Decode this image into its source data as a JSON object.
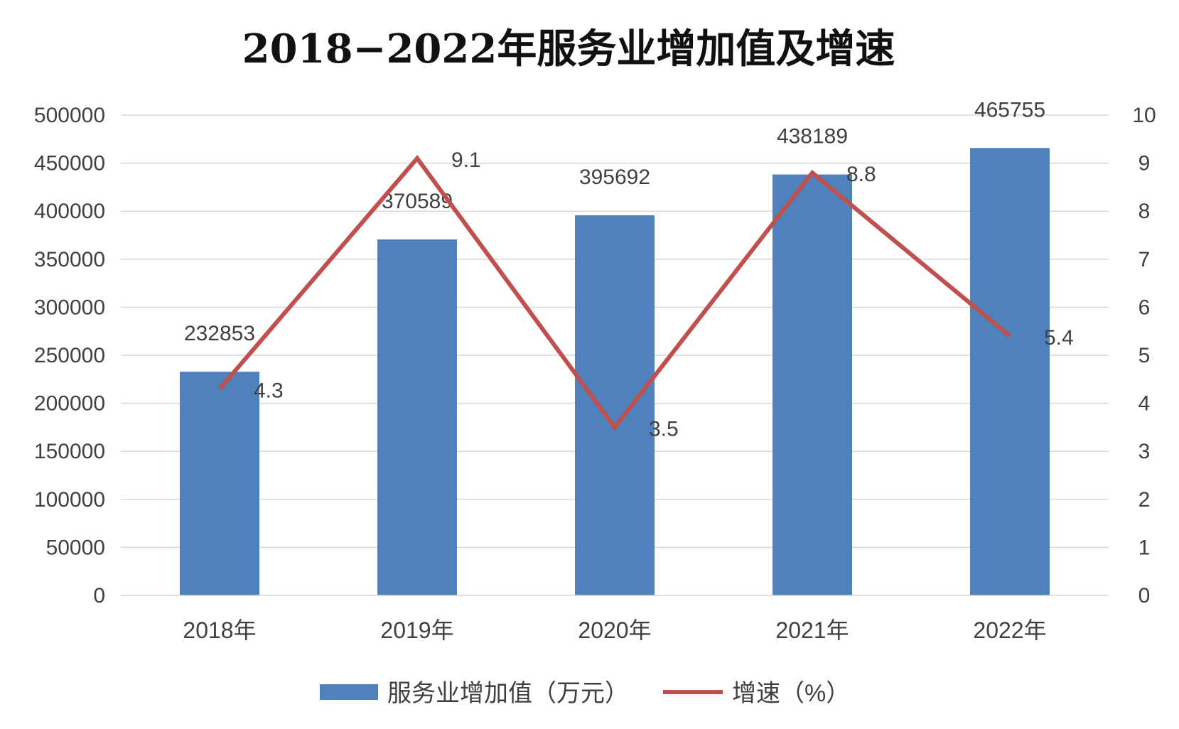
{
  "chart_data": {
    "type": "bar",
    "title": "2018−2022年服务业增加值及增速",
    "categories": [
      "2018年",
      "2019年",
      "2020年",
      "2021年",
      "2022年"
    ],
    "series": [
      {
        "name": "服务业增加值（万元）",
        "type": "bar",
        "axis": "left",
        "color": "#4f81bd",
        "values": [
          232853,
          370589,
          395692,
          438189,
          465755
        ],
        "labels": [
          "232853",
          "370589",
          "395692",
          "438189",
          "465755"
        ]
      },
      {
        "name": "增速（%）",
        "type": "line",
        "axis": "right",
        "color": "#c0504d",
        "values": [
          4.3,
          9.1,
          3.5,
          8.8,
          5.4
        ],
        "labels": [
          "4.3",
          "9.1",
          "3.5",
          "8.8",
          "5.4"
        ]
      }
    ],
    "y_left": {
      "min": 0,
      "max": 500000,
      "ticks": [
        "0",
        "50000",
        "100000",
        "150000",
        "200000",
        "250000",
        "300000",
        "350000",
        "400000",
        "450000",
        "500000"
      ]
    },
    "y_right": {
      "min": 0,
      "max": 10,
      "ticks": [
        "0",
        "1",
        "2",
        "3",
        "4",
        "5",
        "6",
        "7",
        "8",
        "9",
        "10"
      ]
    },
    "grid": true,
    "legend_position": "bottom"
  }
}
